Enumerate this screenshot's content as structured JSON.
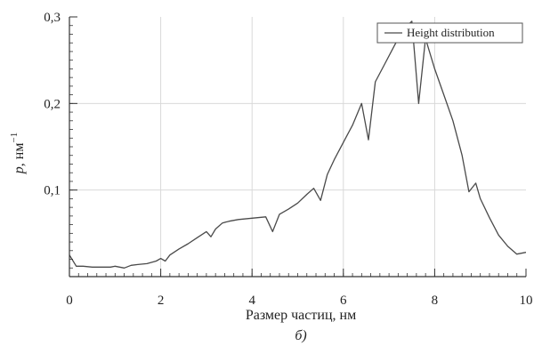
{
  "chart_data": {
    "type": "line",
    "xlabel": "Размер частиц, нм",
    "ylabel_var": "p",
    "ylabel_unit": ", нм",
    "ylabel_exp": "−1",
    "caption": "б)",
    "xlim": [
      0,
      10
    ],
    "ylim": [
      0,
      0.3
    ],
    "x_ticks": [
      0,
      2,
      4,
      6,
      8,
      10
    ],
    "x_tick_labels": [
      "0",
      "2",
      "4",
      "6",
      "8",
      "10"
    ],
    "y_ticks": [
      0.1,
      0.2,
      0.3
    ],
    "y_tick_labels": [
      "0,1",
      "0,2",
      "0,3"
    ],
    "grid": true,
    "legend_position": "top-right",
    "colors": {
      "line": "#4a4a4a",
      "grid": "#d9d9d9",
      "axis": "#333333"
    },
    "series": [
      {
        "name": "Height distribution",
        "x": [
          0.0,
          0.15,
          0.3,
          0.5,
          0.7,
          0.9,
          1.0,
          1.1,
          1.2,
          1.35,
          1.5,
          1.7,
          1.9,
          2.0,
          2.1,
          2.2,
          2.4,
          2.6,
          2.8,
          3.0,
          3.1,
          3.2,
          3.35,
          3.5,
          3.7,
          3.9,
          4.1,
          4.3,
          4.45,
          4.6,
          4.8,
          5.0,
          5.2,
          5.35,
          5.5,
          5.65,
          5.8,
          6.0,
          6.2,
          6.4,
          6.55,
          6.7,
          6.9,
          7.1,
          7.3,
          7.5,
          7.65,
          7.8,
          8.0,
          8.2,
          8.4,
          8.6,
          8.75,
          8.9,
          9.0,
          9.2,
          9.4,
          9.6,
          9.8,
          10.0
        ],
        "y": [
          0.025,
          0.012,
          0.012,
          0.011,
          0.011,
          0.011,
          0.012,
          0.011,
          0.01,
          0.013,
          0.014,
          0.015,
          0.018,
          0.021,
          0.018,
          0.025,
          0.032,
          0.038,
          0.045,
          0.052,
          0.046,
          0.055,
          0.062,
          0.064,
          0.066,
          0.067,
          0.068,
          0.069,
          0.052,
          0.072,
          0.078,
          0.085,
          0.095,
          0.102,
          0.088,
          0.118,
          0.135,
          0.155,
          0.175,
          0.2,
          0.158,
          0.225,
          0.245,
          0.265,
          0.285,
          0.295,
          0.2,
          0.275,
          0.24,
          0.21,
          0.18,
          0.14,
          0.098,
          0.108,
          0.09,
          0.068,
          0.048,
          0.035,
          0.026,
          0.028
        ]
      }
    ]
  }
}
